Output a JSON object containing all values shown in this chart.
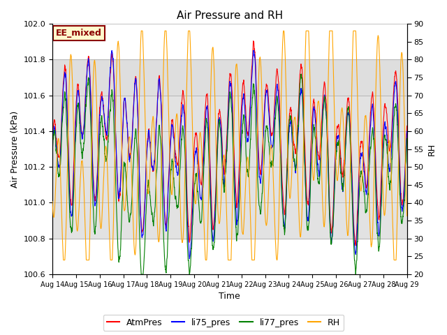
{
  "title": "Air Pressure and RH",
  "xlabel": "Time",
  "ylabel_left": "Air Pressure (kPa)",
  "ylabel_right": "RH",
  "ylim_left": [
    100.6,
    102.0
  ],
  "ylim_right": [
    20,
    90
  ],
  "xlim": [
    0,
    15
  ],
  "x_tick_labels": [
    "Aug 14",
    "Aug 15",
    "Aug 16",
    "Aug 17",
    "Aug 18",
    "Aug 19",
    "Aug 20",
    "Aug 21",
    "Aug 22",
    "Aug 23",
    "Aug 24",
    "Aug 25",
    "Aug 26",
    "Aug 27",
    "Aug 28",
    "Aug 29"
  ],
  "annotation_text": "EE_mixed",
  "annotation_color": "#8B0000",
  "annotation_bg": "#FFFACD",
  "legend_entries": [
    "AtmPres",
    "li75_pres",
    "li77_pres",
    "RH"
  ],
  "line_colors": [
    "red",
    "blue",
    "green",
    "orange"
  ],
  "gray_band": [
    100.8,
    101.8
  ],
  "gray_band2": [
    101.6,
    101.8
  ],
  "background_color": "white",
  "figsize": [
    6.4,
    4.8
  ],
  "dpi": 100
}
